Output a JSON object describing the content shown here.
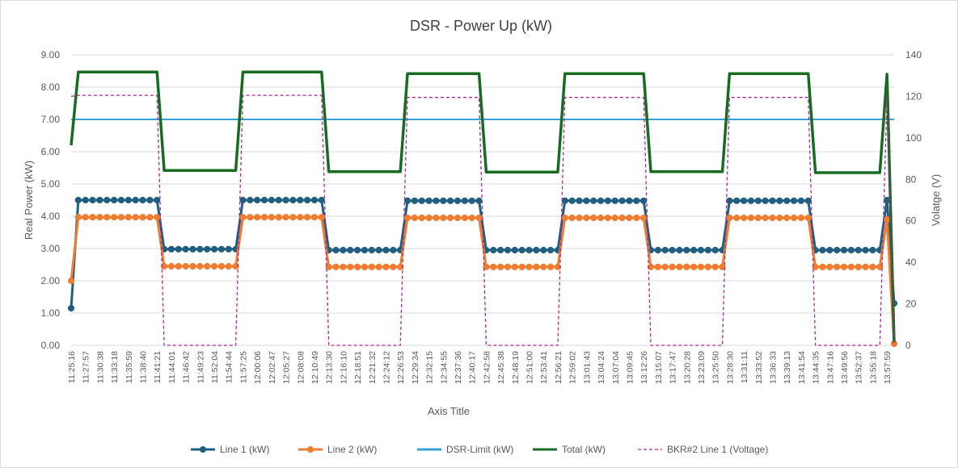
{
  "chart_data": {
    "type": "line",
    "title": "DSR - Power Up (kW)",
    "x_label": "Axis Title",
    "y_label": "Real Power (kW)",
    "y2_label": "Volatge (V)",
    "categories": [
      "11:25:16",
      null,
      "11:27:57",
      null,
      "11:30:38",
      null,
      "11:33:18",
      null,
      "11:35:59",
      null,
      "11:38:40",
      null,
      "11:41:21",
      null,
      "11:44:01",
      null,
      "11:46:42",
      null,
      "11:49:23",
      null,
      "11:52:04",
      null,
      "11:54:44",
      null,
      "11:57:25",
      null,
      "12:00:06",
      null,
      "12:02:47",
      null,
      "12:05:27",
      null,
      "12:08:08",
      null,
      "12:10:49",
      null,
      "12:13:30",
      null,
      "12:16:10",
      null,
      "12:18:51",
      null,
      "12:21:32",
      null,
      "12:24:12",
      null,
      "12:26:53",
      null,
      "12:29:34",
      null,
      "12:32:15",
      null,
      "12:34:55",
      null,
      "12:37:36",
      null,
      "12:40:17",
      null,
      "12:42:58",
      null,
      "12:45:38",
      null,
      "12:48:19",
      null,
      "12:51:00",
      null,
      "12:53:41",
      null,
      "12:56:21",
      null,
      "12:59:02",
      null,
      "13:01:43",
      null,
      "13:04:24",
      null,
      "13:07:04",
      null,
      "13:09:45",
      null,
      "13:12:26",
      null,
      "13:15:07",
      null,
      "13:17:47",
      null,
      "13:20:28",
      null,
      "13:23:09",
      null,
      "13:25:50",
      null,
      "13:28:30",
      null,
      "13:31:11",
      null,
      "13:33:52",
      null,
      "13:36:33",
      null,
      "13:39:13",
      null,
      "13:41:54",
      null,
      "13:44:35",
      null,
      "13:47:16",
      null,
      "13:49:56",
      null,
      "13:52:37",
      null,
      "13:55:18",
      null,
      "13:57:59",
      null
    ],
    "series": [
      {
        "name": "Line 1 (kW)",
        "color": "#215f80",
        "marker": "circle",
        "values": [
          1.15,
          4.5,
          4.5,
          4.5,
          4.5,
          4.5,
          4.5,
          4.5,
          4.5,
          4.5,
          4.5,
          4.5,
          4.5,
          2.98,
          2.98,
          2.98,
          2.98,
          2.98,
          2.98,
          2.98,
          2.98,
          2.98,
          2.98,
          2.98,
          4.5,
          4.5,
          4.5,
          4.5,
          4.5,
          4.5,
          4.5,
          4.5,
          4.5,
          4.5,
          4.5,
          4.5,
          2.95,
          2.95,
          2.95,
          2.95,
          2.95,
          2.95,
          2.95,
          2.95,
          2.95,
          2.95,
          2.95,
          4.48,
          4.48,
          4.48,
          4.48,
          4.48,
          4.48,
          4.48,
          4.48,
          4.48,
          4.48,
          4.48,
          2.95,
          2.95,
          2.95,
          2.95,
          2.95,
          2.95,
          2.95,
          2.95,
          2.95,
          2.95,
          2.95,
          4.48,
          4.48,
          4.48,
          4.48,
          4.48,
          4.48,
          4.48,
          4.48,
          4.48,
          4.48,
          4.48,
          4.48,
          2.95,
          2.95,
          2.95,
          2.95,
          2.95,
          2.95,
          2.95,
          2.95,
          2.95,
          2.95,
          2.95,
          4.48,
          4.48,
          4.48,
          4.48,
          4.48,
          4.48,
          4.48,
          4.48,
          4.48,
          4.48,
          4.48,
          4.48,
          2.95,
          2.95,
          2.95,
          2.95,
          2.95,
          2.95,
          2.95,
          2.95,
          2.95,
          2.95,
          4.5,
          1.3
        ]
      },
      {
        "name": "Line 2 (kW)",
        "color": "#ee7d31",
        "marker": "circle",
        "values": [
          2.0,
          3.97,
          3.97,
          3.97,
          3.97,
          3.97,
          3.97,
          3.97,
          3.97,
          3.97,
          3.97,
          3.97,
          3.97,
          2.45,
          2.45,
          2.45,
          2.45,
          2.45,
          2.45,
          2.45,
          2.45,
          2.45,
          2.45,
          2.45,
          3.97,
          3.97,
          3.97,
          3.97,
          3.97,
          3.97,
          3.97,
          3.97,
          3.97,
          3.97,
          3.97,
          3.97,
          2.43,
          2.43,
          2.43,
          2.43,
          2.43,
          2.43,
          2.43,
          2.43,
          2.43,
          2.43,
          2.43,
          3.95,
          3.95,
          3.95,
          3.95,
          3.95,
          3.95,
          3.95,
          3.95,
          3.95,
          3.95,
          3.95,
          2.43,
          2.43,
          2.43,
          2.43,
          2.43,
          2.43,
          2.43,
          2.43,
          2.43,
          2.43,
          2.43,
          3.95,
          3.95,
          3.95,
          3.95,
          3.95,
          3.95,
          3.95,
          3.95,
          3.95,
          3.95,
          3.95,
          3.95,
          2.43,
          2.43,
          2.43,
          2.43,
          2.43,
          2.43,
          2.43,
          2.43,
          2.43,
          2.43,
          2.43,
          3.95,
          3.95,
          3.95,
          3.95,
          3.95,
          3.95,
          3.95,
          3.95,
          3.95,
          3.95,
          3.95,
          3.95,
          2.43,
          2.43,
          2.43,
          2.43,
          2.43,
          2.43,
          2.43,
          2.43,
          2.43,
          2.43,
          3.9,
          0.05
        ]
      },
      {
        "name": "DSR-Limit (kW)",
        "color": "#3aa0d8",
        "values": [
          7,
          7,
          7,
          7,
          7,
          7,
          7,
          7,
          7,
          7,
          7,
          7,
          7,
          7,
          7,
          7,
          7,
          7,
          7,
          7,
          7,
          7,
          7,
          7,
          7,
          7,
          7,
          7,
          7,
          7,
          7,
          7,
          7,
          7,
          7,
          7,
          7,
          7,
          7,
          7,
          7,
          7,
          7,
          7,
          7,
          7,
          7,
          7,
          7,
          7,
          7,
          7,
          7,
          7,
          7,
          7,
          7,
          7,
          7,
          7,
          7,
          7,
          7,
          7,
          7,
          7,
          7,
          7,
          7,
          7,
          7,
          7,
          7,
          7,
          7,
          7,
          7,
          7,
          7,
          7,
          7,
          7,
          7,
          7,
          7,
          7,
          7,
          7,
          7,
          7,
          7,
          7,
          7,
          7,
          7,
          7,
          7,
          7,
          7,
          7,
          7,
          7,
          7,
          7,
          7,
          7,
          7,
          7,
          7,
          7,
          7,
          7,
          7,
          7,
          7,
          7
        ]
      },
      {
        "name": "Total (kW)",
        "color": "#196b24",
        "values": [
          6.2,
          8.47,
          8.47,
          8.47,
          8.47,
          8.47,
          8.47,
          8.47,
          8.47,
          8.47,
          8.47,
          8.47,
          8.47,
          5.42,
          5.42,
          5.42,
          5.42,
          5.42,
          5.42,
          5.42,
          5.42,
          5.42,
          5.42,
          5.42,
          8.47,
          8.47,
          8.47,
          8.47,
          8.47,
          8.47,
          8.47,
          8.47,
          8.47,
          8.47,
          8.47,
          8.47,
          5.38,
          5.38,
          5.38,
          5.38,
          5.38,
          5.38,
          5.38,
          5.38,
          5.38,
          5.38,
          5.38,
          8.42,
          8.42,
          8.42,
          8.42,
          8.42,
          8.42,
          8.42,
          8.42,
          8.42,
          8.42,
          8.42,
          5.37,
          5.37,
          5.37,
          5.37,
          5.37,
          5.37,
          5.37,
          5.37,
          5.37,
          5.37,
          5.37,
          8.42,
          8.42,
          8.42,
          8.42,
          8.42,
          8.42,
          8.42,
          8.42,
          8.42,
          8.42,
          8.42,
          8.42,
          5.38,
          5.38,
          5.38,
          5.38,
          5.38,
          5.38,
          5.38,
          5.38,
          5.38,
          5.38,
          5.38,
          8.42,
          8.42,
          8.42,
          8.42,
          8.42,
          8.42,
          8.42,
          8.42,
          8.42,
          8.42,
          8.42,
          8.42,
          5.35,
          5.35,
          5.35,
          5.35,
          5.35,
          5.35,
          5.35,
          5.35,
          5.35,
          5.35,
          8.4,
          0.1
        ]
      },
      {
        "name": "BKR#2 Line 1 (Voltage)",
        "color": "#a02b93",
        "dash": "dashed",
        "axis": "y2",
        "values": [
          120,
          120.5,
          120.5,
          120.5,
          120.5,
          120.5,
          120.5,
          120.5,
          120.5,
          120.5,
          120.5,
          120.5,
          120.5,
          0,
          0,
          0,
          0,
          0,
          0,
          0,
          0,
          0,
          0,
          0,
          120.5,
          120.5,
          120.5,
          120.5,
          120.5,
          120.5,
          120.5,
          120.5,
          120.5,
          120.5,
          120.5,
          120.5,
          0,
          0,
          0,
          0,
          0,
          0,
          0,
          0,
          0,
          0,
          0,
          119.5,
          119.5,
          119.5,
          119.5,
          119.5,
          119.5,
          119.5,
          119.5,
          119.5,
          119.5,
          119.5,
          0,
          0,
          0,
          0,
          0,
          0,
          0,
          0,
          0,
          0,
          0,
          119.5,
          119.5,
          119.5,
          119.5,
          119.5,
          119.5,
          119.5,
          119.5,
          119.5,
          119.5,
          119.5,
          119.5,
          0,
          0,
          0,
          0,
          0,
          0,
          0,
          0,
          0,
          0,
          0,
          119.5,
          119.5,
          119.5,
          119.5,
          119.5,
          119.5,
          119.5,
          119.5,
          119.5,
          119.5,
          119.5,
          119.5,
          0,
          0,
          0,
          0,
          0,
          0,
          0,
          0,
          0,
          0,
          120,
          0
        ]
      }
    ],
    "ylim": [
      0,
      9
    ],
    "yticks": [
      {
        "value": 0,
        "label": "0.00"
      },
      {
        "value": 1,
        "label": "1.00"
      },
      {
        "value": 2,
        "label": "2.00"
      },
      {
        "value": 3,
        "label": "3.00"
      },
      {
        "value": 4,
        "label": "4.00"
      },
      {
        "value": 5,
        "label": "5.00"
      },
      {
        "value": 6,
        "label": "6.00"
      },
      {
        "value": 7,
        "label": "7.00"
      },
      {
        "value": 8,
        "label": "8.00"
      },
      {
        "value": 9,
        "label": "9.00"
      }
    ],
    "y2lim": [
      0,
      140
    ],
    "y2ticks": [
      0,
      20,
      40,
      60,
      80,
      100,
      120,
      140
    ],
    "grid": true,
    "legend": "bottom"
  }
}
